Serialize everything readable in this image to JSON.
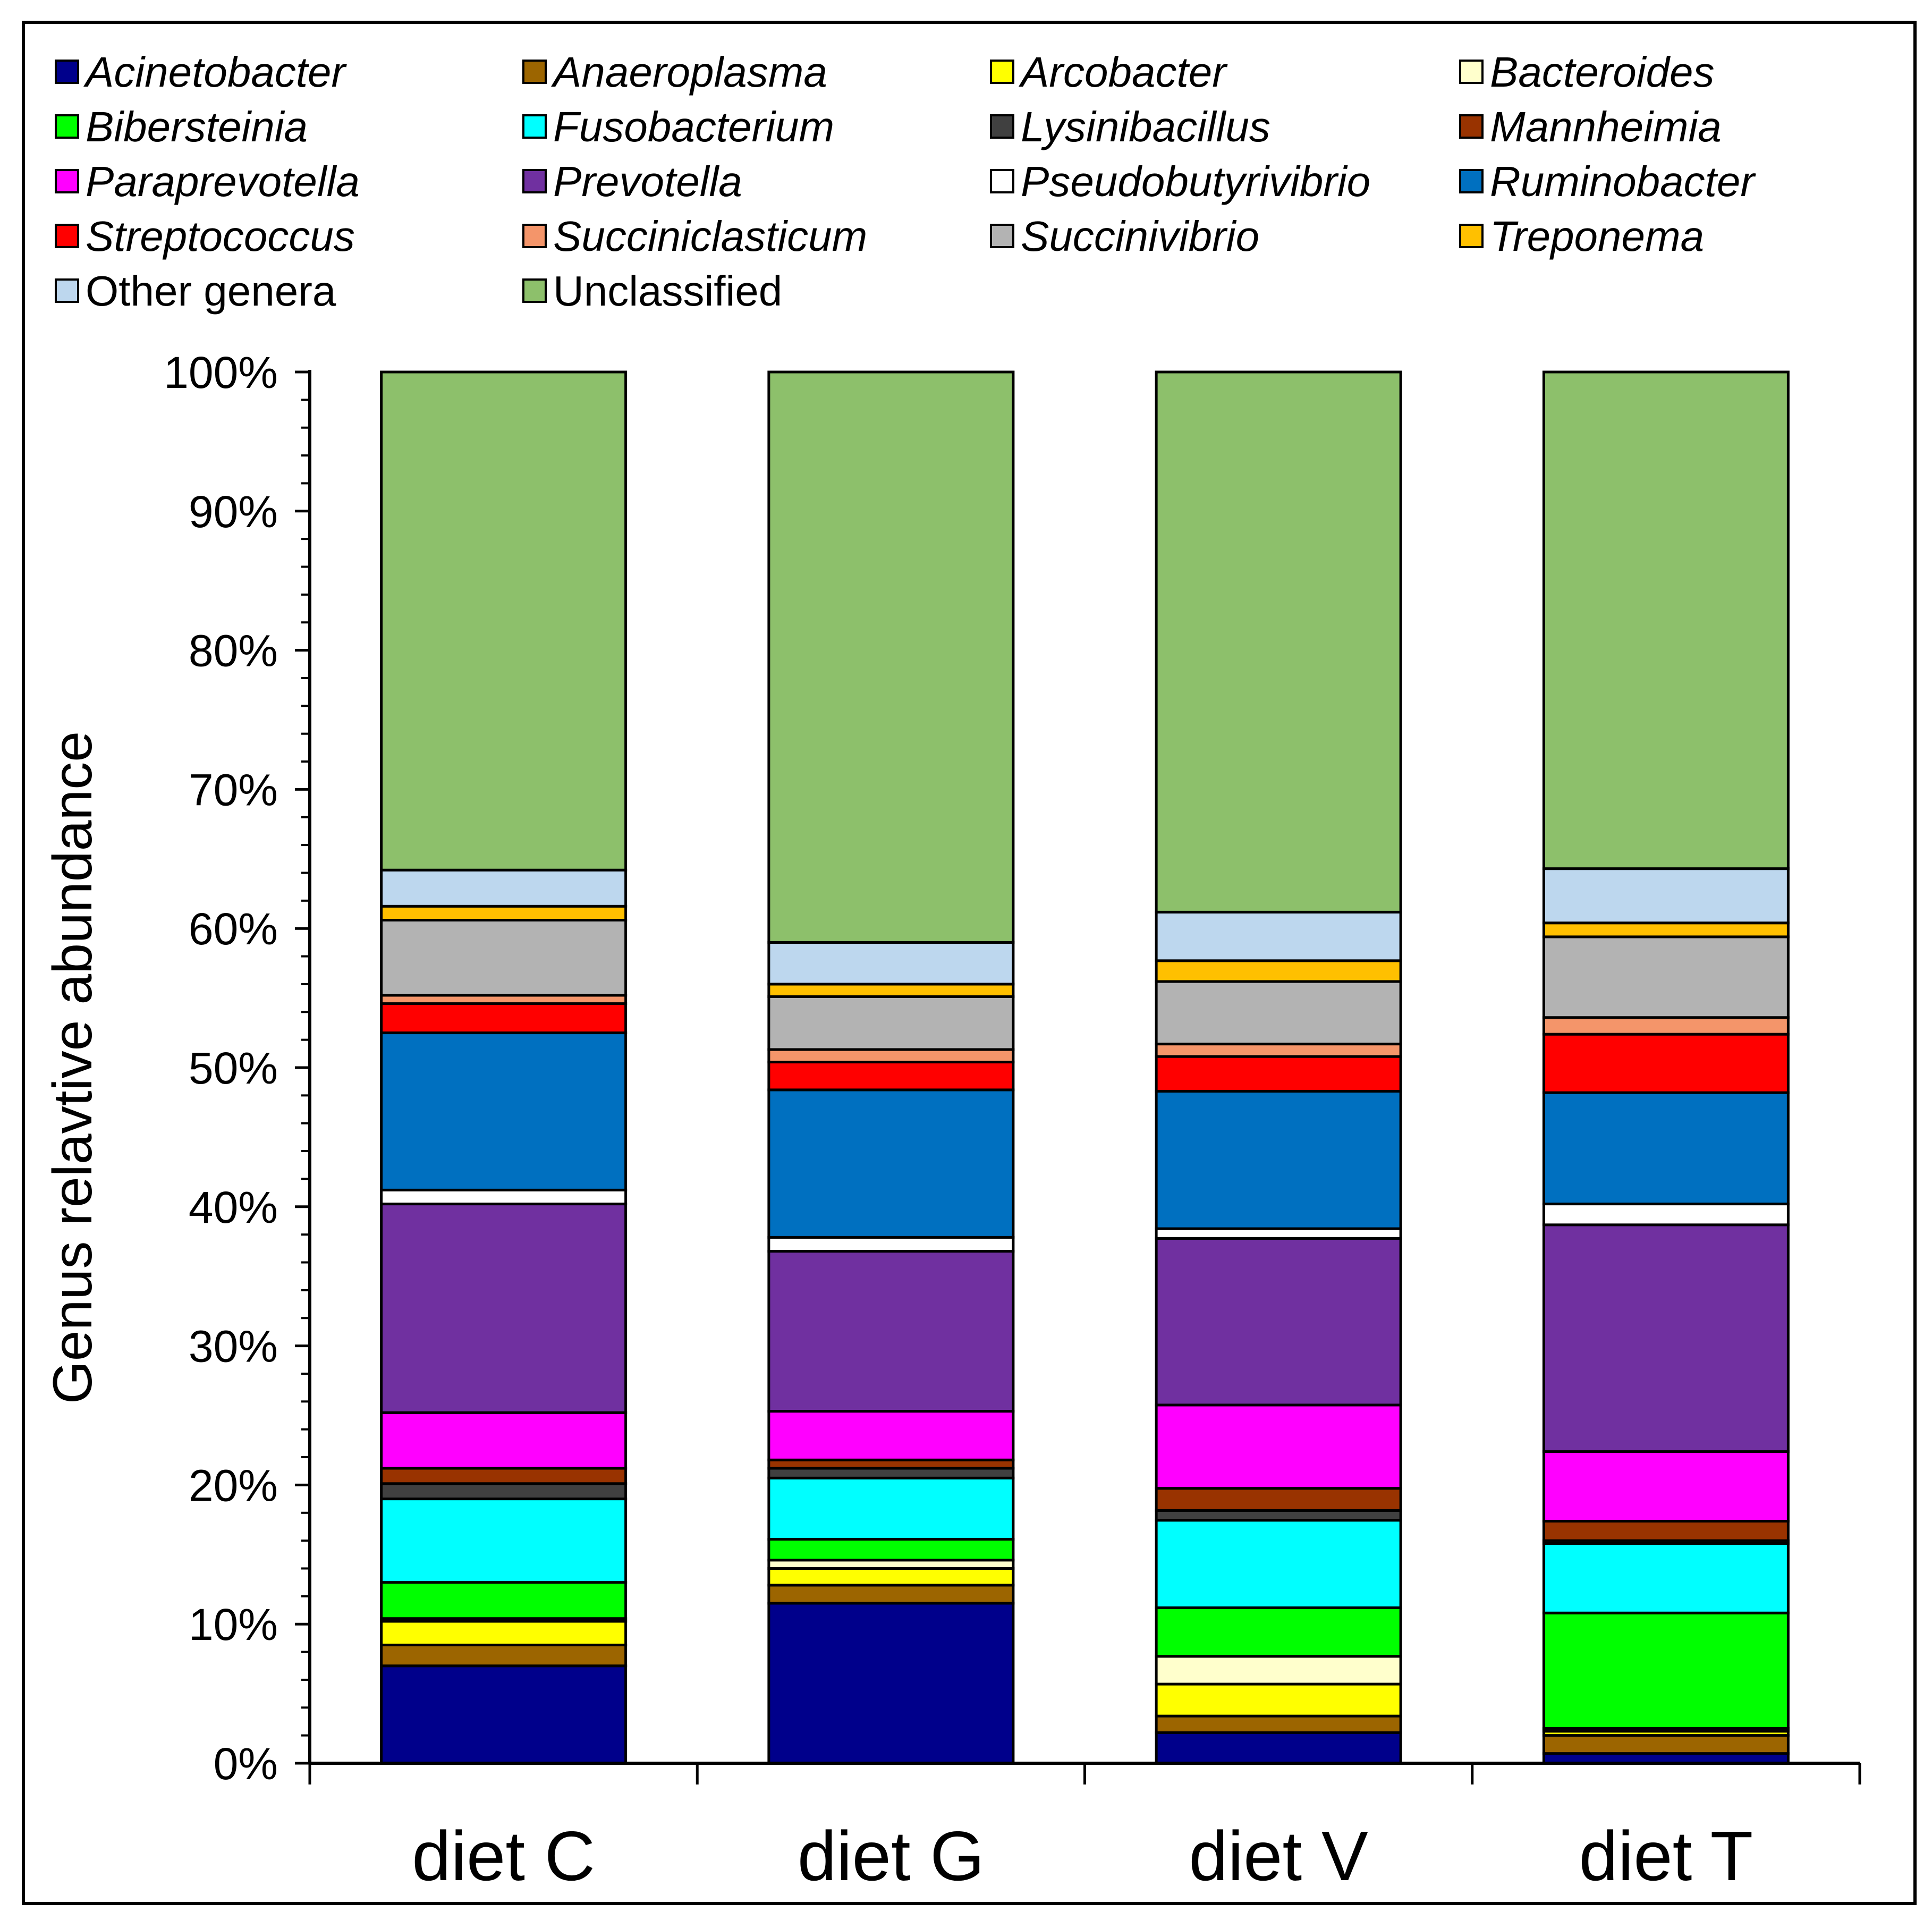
{
  "chart_data": {
    "type": "bar",
    "stacked": true,
    "percent": true,
    "title": "",
    "xlabel": "",
    "ylabel": "Genus relavtive abundance",
    "ylim": [
      0,
      100
    ],
    "yticks": [
      "0%",
      "10%",
      "20%",
      "30%",
      "40%",
      "50%",
      "60%",
      "70%",
      "80%",
      "90%",
      "100%"
    ],
    "grid": false,
    "legend_position": "top",
    "categories": [
      "diet C",
      "diet G",
      "diet V",
      "diet T"
    ],
    "series": [
      {
        "name": "Acinetobacter",
        "italic": true,
        "color": "#00008B",
        "values": [
          7.0,
          11.5,
          2.2,
          0.7
        ]
      },
      {
        "name": "Anaeroplasma",
        "italic": true,
        "color": "#9C6500",
        "values": [
          1.5,
          1.3,
          1.2,
          1.3
        ]
      },
      {
        "name": "Arcobacter",
        "italic": true,
        "color": "#FFFF00",
        "values": [
          1.7,
          1.2,
          2.3,
          0.3
        ]
      },
      {
        "name": "Bacteroides",
        "italic": true,
        "color": "#FFFFCC",
        "values": [
          0.2,
          0.6,
          2.0,
          0.2
        ]
      },
      {
        "name": "Bibersteinia",
        "italic": true,
        "color": "#00FF00",
        "values": [
          2.6,
          1.5,
          3.5,
          8.3
        ]
      },
      {
        "name": "Fusobacterium",
        "italic": true,
        "color": "#00FFFF",
        "values": [
          6.0,
          4.4,
          6.3,
          5.0
        ]
      },
      {
        "name": "Lysinibacillus",
        "italic": true,
        "color": "#404040",
        "values": [
          1.1,
          0.7,
          0.7,
          0.2
        ]
      },
      {
        "name": "Mannheimia",
        "italic": true,
        "color": "#993300",
        "values": [
          1.1,
          0.6,
          1.6,
          1.4
        ]
      },
      {
        "name": "Paraprevotella",
        "italic": true,
        "color": "#FF00FF",
        "values": [
          4.0,
          3.5,
          6.0,
          5.0
        ]
      },
      {
        "name": "Prevotella",
        "italic": true,
        "color": "#7030A0",
        "values": [
          15.0,
          11.5,
          12.0,
          16.3
        ]
      },
      {
        "name": "Pseudobutyrivibrio",
        "italic": true,
        "color": "#FFFFFF",
        "values": [
          1.0,
          1.0,
          0.7,
          1.5
        ]
      },
      {
        "name": "Ruminobacter",
        "italic": true,
        "color": "#0070C0",
        "values": [
          11.3,
          10.6,
          9.9,
          8.0
        ]
      },
      {
        "name": "Streptococcus",
        "italic": true,
        "color": "#FF0000",
        "values": [
          2.1,
          2.0,
          2.5,
          4.2
        ]
      },
      {
        "name": "Succiniclasticum",
        "italic": true,
        "color": "#F4956A",
        "values": [
          0.6,
          0.9,
          0.9,
          1.2
        ]
      },
      {
        "name": "Succinivibrio",
        "italic": true,
        "color": "#B3B3B3",
        "values": [
          5.4,
          3.8,
          4.5,
          5.8
        ]
      },
      {
        "name": "Treponema",
        "italic": true,
        "color": "#FFC000",
        "values": [
          1.0,
          0.9,
          1.5,
          1.0
        ]
      },
      {
        "name": "Other genera",
        "italic": false,
        "color": "#BDD7EE",
        "values": [
          2.6,
          3.0,
          3.5,
          3.9
        ]
      },
      {
        "name": "Unclassified",
        "italic": false,
        "color": "#8DC06B",
        "values": [
          35.8,
          41.0,
          38.9,
          35.7
        ]
      }
    ]
  }
}
